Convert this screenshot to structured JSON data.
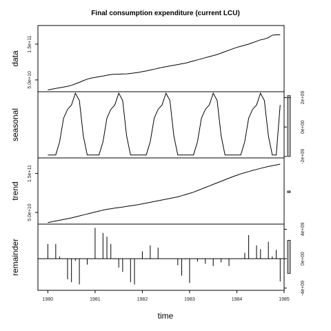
{
  "chart_data": {
    "type": "line",
    "title": "Final consumption expenditure (current LCU)",
    "xlabel": "time",
    "x_ticks": [
      "1980",
      "1981",
      "1982",
      "1983",
      "1984",
      "1985"
    ],
    "xlim": [
      1979.79,
      1985.0
    ],
    "x": [
      1980.0,
      1980.083,
      1980.167,
      1980.25,
      1980.333,
      1980.417,
      1980.5,
      1980.583,
      1980.667,
      1980.75,
      1980.833,
      1980.917,
      1981.0,
      1981.083,
      1981.167,
      1981.25,
      1981.333,
      1981.417,
      1981.5,
      1981.583,
      1981.667,
      1981.75,
      1981.833,
      1981.917,
      1982.0,
      1982.083,
      1982.167,
      1982.25,
      1982.333,
      1982.417,
      1982.5,
      1982.583,
      1982.667,
      1982.75,
      1982.833,
      1982.917,
      1983.0,
      1983.083,
      1983.167,
      1983.25,
      1983.333,
      1983.417,
      1983.5,
      1983.583,
      1983.667,
      1983.75,
      1983.833,
      1983.917,
      1984.0,
      1984.083,
      1984.167,
      1984.25,
      1984.333,
      1984.417,
      1984.5,
      1984.583,
      1984.667,
      1984.75,
      1984.833,
      1984.917
    ],
    "panels": [
      {
        "name": "data",
        "label": "data",
        "ylim": [
          17000000000.0,
          202000000000.0
        ],
        "y_ticks": [
          {
            "value": 50000000000.0,
            "label": "5.0e+10"
          },
          {
            "value": 150000000000.0,
            "label": "1.5e+11"
          }
        ],
        "tick_side": "left",
        "range_bar": [
          6000000000.0,
          -6000000000.0
        ],
        "series": [
          {
            "type": "line",
            "values": [
              22000000000.0,
              24000000000.0,
              26000000000.0,
              28000000000.0,
              30000000000.0,
              32000000000.0,
              35000000000.0,
              39000000000.0,
              43000000000.0,
              48000000000.0,
              52000000000.0,
              55000000000.0,
              57000000000.0,
              59000000000.0,
              61000000000.0,
              63000000000.0,
              65000000000.0,
              66000000000.0,
              66000000000.0,
              66500000000.0,
              67000000000.0,
              68000000000.0,
              69500000000.0,
              71000000000.0,
              73000000000.0,
              75000000000.0,
              77500000000.0,
              80000000000.0,
              82500000000.0,
              85000000000.0,
              87000000000.0,
              89000000000.0,
              91000000000.0,
              93000000000.0,
              95000000000.0,
              97000000000.0,
              100000000000.0,
              103000000000.0,
              106000000000.0,
              109000000000.0,
              112000000000.0,
              115000000000.0,
              118000000000.0,
              121000000000.0,
              125000000000.0,
              129000000000.0,
              133000000000.0,
              137000000000.0,
              141000000000.0,
              144000000000.0,
              147000000000.0,
              150000000000.0,
              154000000000.0,
              158000000000.0,
              162000000000.0,
              164000000000.0,
              168000000000.0,
              175000000000.0,
              176000000000.0,
              176000000000.0
            ]
          }
        ]
      },
      {
        "name": "seasonal",
        "label": "seasonal",
        "ylim": [
          -2100000000.0,
          2400000000.0
        ],
        "y_ticks": [
          {
            "value": -2000000000.0,
            "label": "-2e+09"
          },
          {
            "value": 0,
            "label": "0e+00"
          },
          {
            "value": 2000000000.0,
            "label": "2e+09"
          }
        ],
        "tick_side": "right",
        "range_bar": [
          2000000000.0,
          -2000000000.0
        ],
        "series": [
          {
            "type": "line",
            "values": [
              -1900000000.0,
              -1900000000.0,
              -1900000000.0,
              -1000000000.0,
              600000000.0,
              1200000000.0,
              1500000000.0,
              2300000000.0,
              1800000000.0,
              -600000000.0,
              -1900000000.0,
              -1900000000.0,
              -1900000000.0,
              -1900000000.0,
              -1000000000.0,
              600000000.0,
              1200000000.0,
              1500000000.0,
              2300000000.0,
              1800000000.0,
              -600000000.0,
              -1900000000.0,
              -1900000000.0,
              -1900000000.0,
              -1900000000.0,
              -1900000000.0,
              -1000000000.0,
              600000000.0,
              1200000000.0,
              1500000000.0,
              2300000000.0,
              1800000000.0,
              -600000000.0,
              -1900000000.0,
              -1900000000.0,
              -1900000000.0,
              -1900000000.0,
              -1900000000.0,
              -1000000000.0,
              600000000.0,
              1200000000.0,
              1500000000.0,
              2300000000.0,
              1800000000.0,
              -600000000.0,
              -1900000000.0,
              -1900000000.0,
              -1900000000.0,
              -1900000000.0,
              -1900000000.0,
              -1000000000.0,
              600000000.0,
              1200000000.0,
              1500000000.0,
              2300000000.0,
              1800000000.0,
              -600000000.0,
              -1900000000.0,
              -1900000000.0,
              1500000000.0
            ]
          }
        ]
      },
      {
        "name": "trend",
        "label": "trend",
        "ylim": [
          20000000000.0,
          190000000000.0
        ],
        "y_ticks": [
          {
            "value": 50000000000.0,
            "label": "5.0e+10"
          },
          {
            "value": 150000000000.0,
            "label": "1.5e+11"
          }
        ],
        "tick_side": "left",
        "range_bar": [
          105000000000.0,
          101000000000.0
        ],
        "series": [
          {
            "type": "line",
            "values": [
              24000000000.0,
              26000000000.0,
              28000000000.0,
              30000000000.0,
              32000000000.0,
              34000000000.0,
              36000000000.0,
              38500000000.0,
              41000000000.0,
              43500000000.0,
              46000000000.0,
              48500000000.0,
              51000000000.0,
              53500000000.0,
              56000000000.0,
              58000000000.0,
              59500000000.0,
              61000000000.0,
              62500000000.0,
              64000000000.0,
              65500000000.0,
              67000000000.0,
              68500000000.0,
              70000000000.0,
              72000000000.0,
              74000000000.0,
              76000000000.0,
              78000000000.0,
              80000000000.0,
              82000000000.0,
              84000000000.0,
              86000000000.0,
              88000000000.0,
              90000000000.0,
              93000000000.0,
              96000000000.0,
              99000000000.0,
              102000000000.0,
              106000000000.0,
              110000000000.0,
              114000000000.0,
              118000000000.0,
              122000000000.0,
              126000000000.0,
              130000000000.0,
              134000000000.0,
              138000000000.0,
              142000000000.0,
              145500000000.0,
              149000000000.0,
              152000000000.0,
              155000000000.0,
              158000000000.0,
              160500000000.0,
              163000000000.0,
              165500000000.0,
              168000000000.0,
              170000000000.0,
              172000000000.0,
              174000000000.0
            ]
          }
        ]
      },
      {
        "name": "remainder",
        "label": "remainder",
        "ylim": [
          -4300000000.0,
          4700000000.0
        ],
        "y_ticks": [
          {
            "value": -4000000000.0,
            "label": "-4e+09"
          },
          {
            "value": 0,
            "label": "0e+00"
          },
          {
            "value": 4000000000.0,
            "label": "4e+09"
          }
        ],
        "tick_side": "right",
        "range_bar": [
          2500000000.0,
          -2000000000.0
        ],
        "series": [
          {
            "type": "spikes",
            "values": [
              2000000000.0,
              0,
              2000000000.0,
              300000000.0,
              0,
              -2800000000.0,
              -3200000000.0,
              -300000000.0,
              -3500000000.0,
              0,
              -800000000.0,
              0,
              4200000000.0,
              0,
              3500000000.0,
              3000000000.0,
              2000000000.0,
              0,
              -1200000000.0,
              -1800000000.0,
              0,
              -3200000000.0,
              -3500000000.0,
              0,
              1000000000.0,
              0,
              1800000000.0,
              0,
              1500000000.0,
              0,
              0,
              0,
              0,
              -900000000.0,
              -2300000000.0,
              -100000000.0,
              -3300000000.0,
              0,
              -400000000.0,
              0,
              -700000000.0,
              0,
              -1000000000.0,
              0,
              -500000000.0,
              0,
              -1000000000.0,
              0,
              0,
              0,
              800000000.0,
              3200000000.0,
              0,
              1800000000.0,
              1300000000.0,
              0,
              2300000000.0,
              300000000.0,
              1200000000.0,
              -3100000000.0
            ]
          }
        ]
      }
    ]
  }
}
